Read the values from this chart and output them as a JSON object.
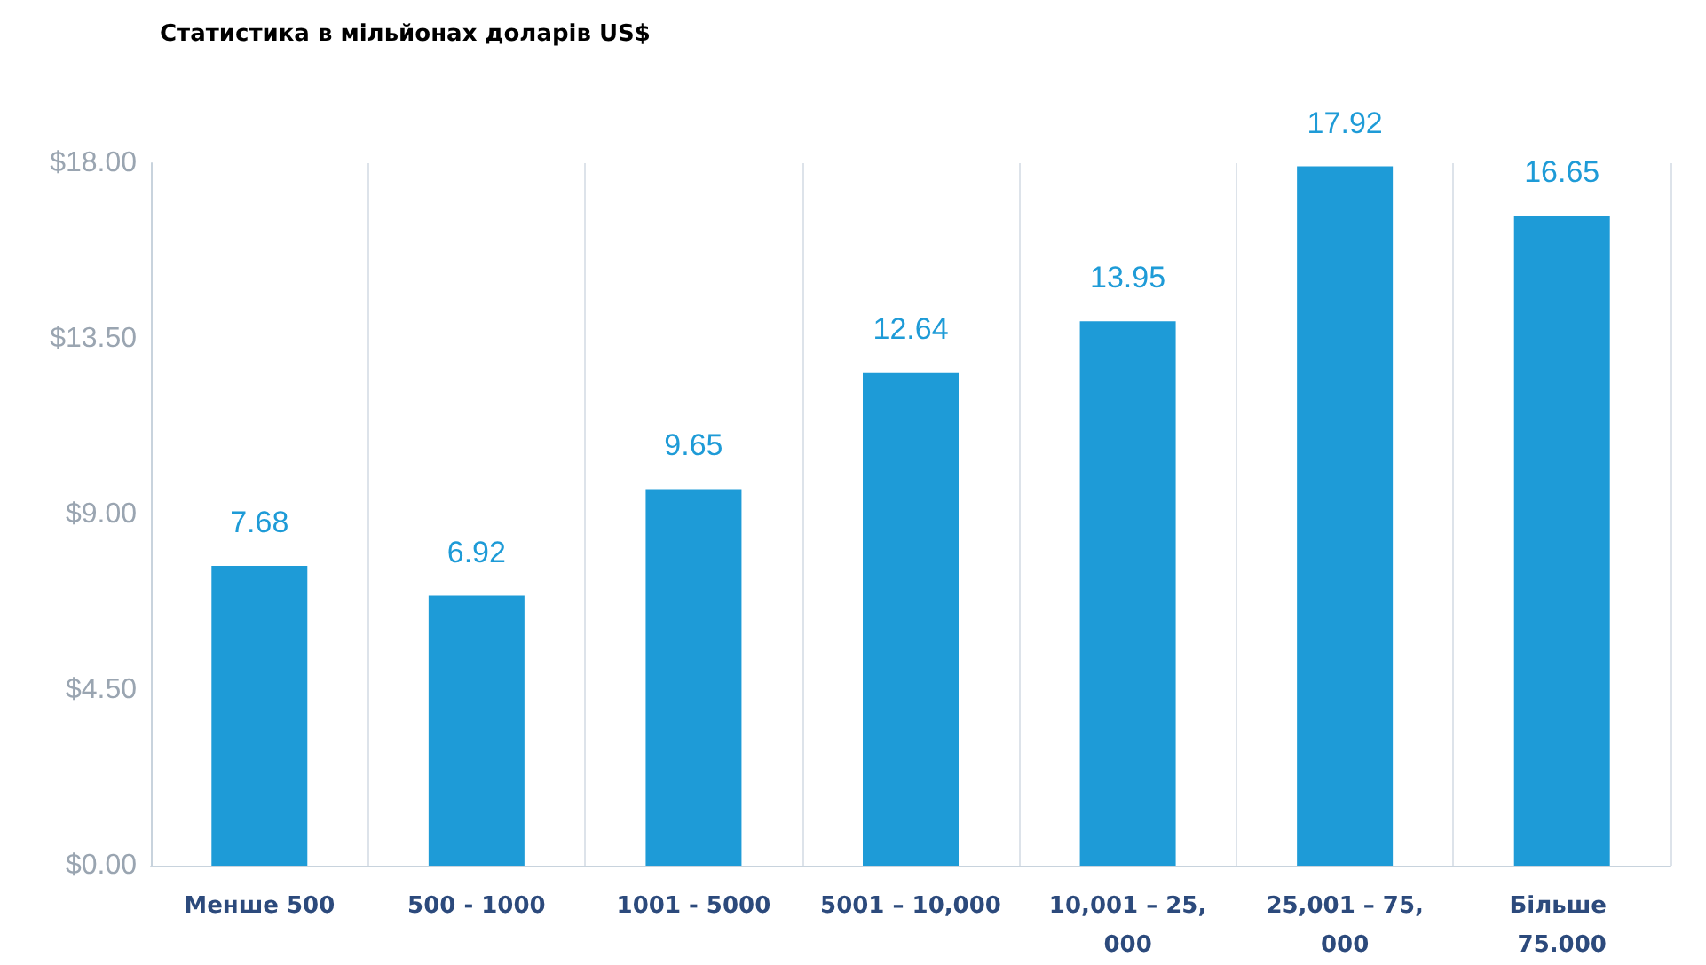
{
  "chart_data": {
    "type": "bar",
    "title": "Статистика в мільйонах доларів US$",
    "categories": [
      "Менше 500",
      "500 - 1000",
      "1001 - 5000",
      "5001 – 10,000",
      "10,001 – 25,000",
      "25,001 – 75,000",
      "Більше 75.000"
    ],
    "values": [
      7.68,
      6.92,
      9.65,
      12.64,
      13.95,
      17.92,
      16.65
    ],
    "color": "#1e9bd7",
    "ylim": [
      0,
      18
    ],
    "yticks": [
      {
        "value": 0,
        "label": "$0.00"
      },
      {
        "value": 4.5,
        "label": "$4.50"
      },
      {
        "value": 9,
        "label": "$9.00"
      },
      {
        "value": 13.5,
        "label": "$13.50"
      },
      {
        "value": 18,
        "label": "$18.00"
      }
    ],
    "grid": "x",
    "data_labels": true
  }
}
